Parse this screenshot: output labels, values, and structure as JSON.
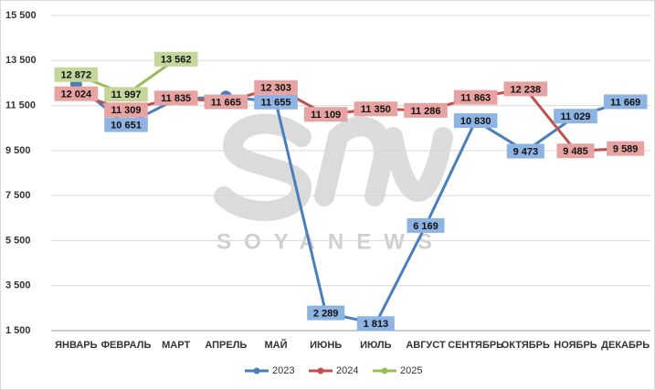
{
  "chart_data": {
    "type": "line",
    "categories": [
      "ЯНВАРЬ",
      "ФЕВРАЛЬ",
      "МАРТ",
      "АПРЕЛЬ",
      "МАЙ",
      "ИЮНЬ",
      "ИЮЛЬ",
      "АВГУСТ",
      "СЕНТЯБРЬ",
      "ОКТЯБРЬ",
      "НОЯБРЬ",
      "ДЕКАБРЬ"
    ],
    "series": [
      {
        "name": "2023",
        "color": "#4a7ebb",
        "label_color": "#8db4e2",
        "values": [
          12450,
          10651,
          11780,
          11900,
          11655,
          2289,
          1813,
          6169,
          10830,
          9473,
          11029,
          11669
        ],
        "value_labels": [
          null,
          "10 651",
          null,
          null,
          "11 655",
          "2 289",
          "1 813",
          "6 169",
          "10 830",
          "9 473",
          "11 029",
          "11 669"
        ]
      },
      {
        "name": "2024",
        "color": "#c0504d",
        "label_color": "#e6a3a1",
        "values": [
          12024,
          11309,
          11835,
          11665,
          12303,
          11109,
          11350,
          11286,
          11863,
          12238,
          9485,
          9589
        ],
        "value_labels": [
          "12 024",
          "11 309",
          "11 835",
          "11 665",
          "12 303",
          "11 109",
          "11 350",
          "11 286",
          "11 863",
          "12 238",
          "9 485",
          "9 589"
        ]
      },
      {
        "name": "2025",
        "color": "#9bbb59",
        "label_color": "#c4d79b",
        "values": [
          12872,
          11997,
          13562,
          null,
          null,
          null,
          null,
          null,
          null,
          null,
          null,
          null
        ],
        "value_labels": [
          "12 872",
          "11 997",
          "13 562",
          null,
          null,
          null,
          null,
          null,
          null,
          null,
          null,
          null
        ]
      }
    ],
    "ylim": [
      1500,
      15500
    ],
    "yticks": [
      {
        "value": 1500,
        "label": "1 500"
      },
      {
        "value": 3500,
        "label": "3 500"
      },
      {
        "value": 5500,
        "label": "5 500"
      },
      {
        "value": 7500,
        "label": "7 500"
      },
      {
        "value": 9500,
        "label": "9 500"
      },
      {
        "value": 11500,
        "label": "11 500"
      },
      {
        "value": 13500,
        "label": "13 500"
      },
      {
        "value": 15500,
        "label": "15 500"
      }
    ],
    "grid": true,
    "legend": "bottom",
    "watermark": "SOYANEWS"
  }
}
